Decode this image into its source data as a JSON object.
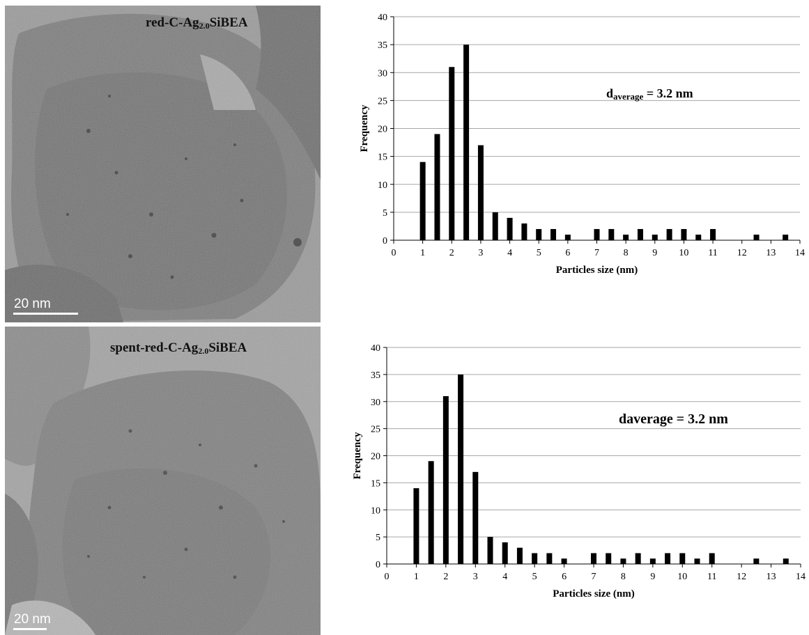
{
  "micrographs": [
    {
      "label_main": "red-C-Ag",
      "label_sub": "2.0",
      "label_tail": "SiBEA",
      "scale_bar": "20 nm"
    },
    {
      "label_main": "spent-red-C-Ag",
      "label_sub": "2.0",
      "label_tail": "SiBEA",
      "scale_bar": "20 nm"
    }
  ],
  "chart_data": [
    {
      "type": "bar",
      "xlabel": "Particles size (nm)",
      "ylabel": "Frequency",
      "xlim": [
        0,
        14
      ],
      "ylim": [
        0,
        40
      ],
      "xticks": [
        "0",
        "1",
        "2",
        "3",
        "4",
        "5",
        "6",
        "7",
        "8",
        "9",
        "10",
        "11",
        "12",
        "13",
        "14"
      ],
      "yticks": [
        "0",
        "5",
        "10",
        "15",
        "20",
        "25",
        "30",
        "35",
        "40"
      ],
      "grid": true,
      "x": [
        1,
        1.5,
        2,
        2.5,
        3,
        3.5,
        4,
        4.5,
        5,
        5.5,
        6,
        7,
        7.5,
        8,
        8.5,
        9,
        9.5,
        10,
        10.5,
        11,
        12.5,
        13.5
      ],
      "values": [
        14,
        19,
        31,
        35,
        17,
        5,
        4,
        3,
        2,
        2,
        1,
        2,
        2,
        1,
        2,
        1,
        2,
        2,
        1,
        2,
        1,
        1
      ],
      "annotation_main": "d",
      "annotation_sub": "average",
      "annotation_tail": " = 3.2 nm",
      "color": "#000000"
    },
    {
      "type": "bar",
      "xlabel": "Particles size (nm)",
      "ylabel": "Frequency",
      "xlim": [
        0,
        14
      ],
      "ylim": [
        0,
        40
      ],
      "xticks": [
        "0",
        "1",
        "2",
        "3",
        "4",
        "5",
        "6",
        "7",
        "8",
        "9",
        "10",
        "11",
        "12",
        "13",
        "14"
      ],
      "yticks": [
        "0",
        "5",
        "10",
        "15",
        "20",
        "25",
        "30",
        "35",
        "40"
      ],
      "grid": true,
      "x": [
        1,
        1.5,
        2,
        2.5,
        3,
        3.5,
        4,
        4.5,
        5,
        5.5,
        6,
        7,
        7.5,
        8,
        8.5,
        9,
        9.5,
        10,
        10.5,
        11,
        12.5,
        13.5
      ],
      "values": [
        14,
        19,
        31,
        35,
        17,
        5,
        4,
        3,
        2,
        2,
        1,
        2,
        2,
        1,
        2,
        1,
        2,
        2,
        1,
        2,
        1,
        1
      ],
      "annotation": "daverage = 3.2 nm",
      "color": "#000000"
    }
  ]
}
